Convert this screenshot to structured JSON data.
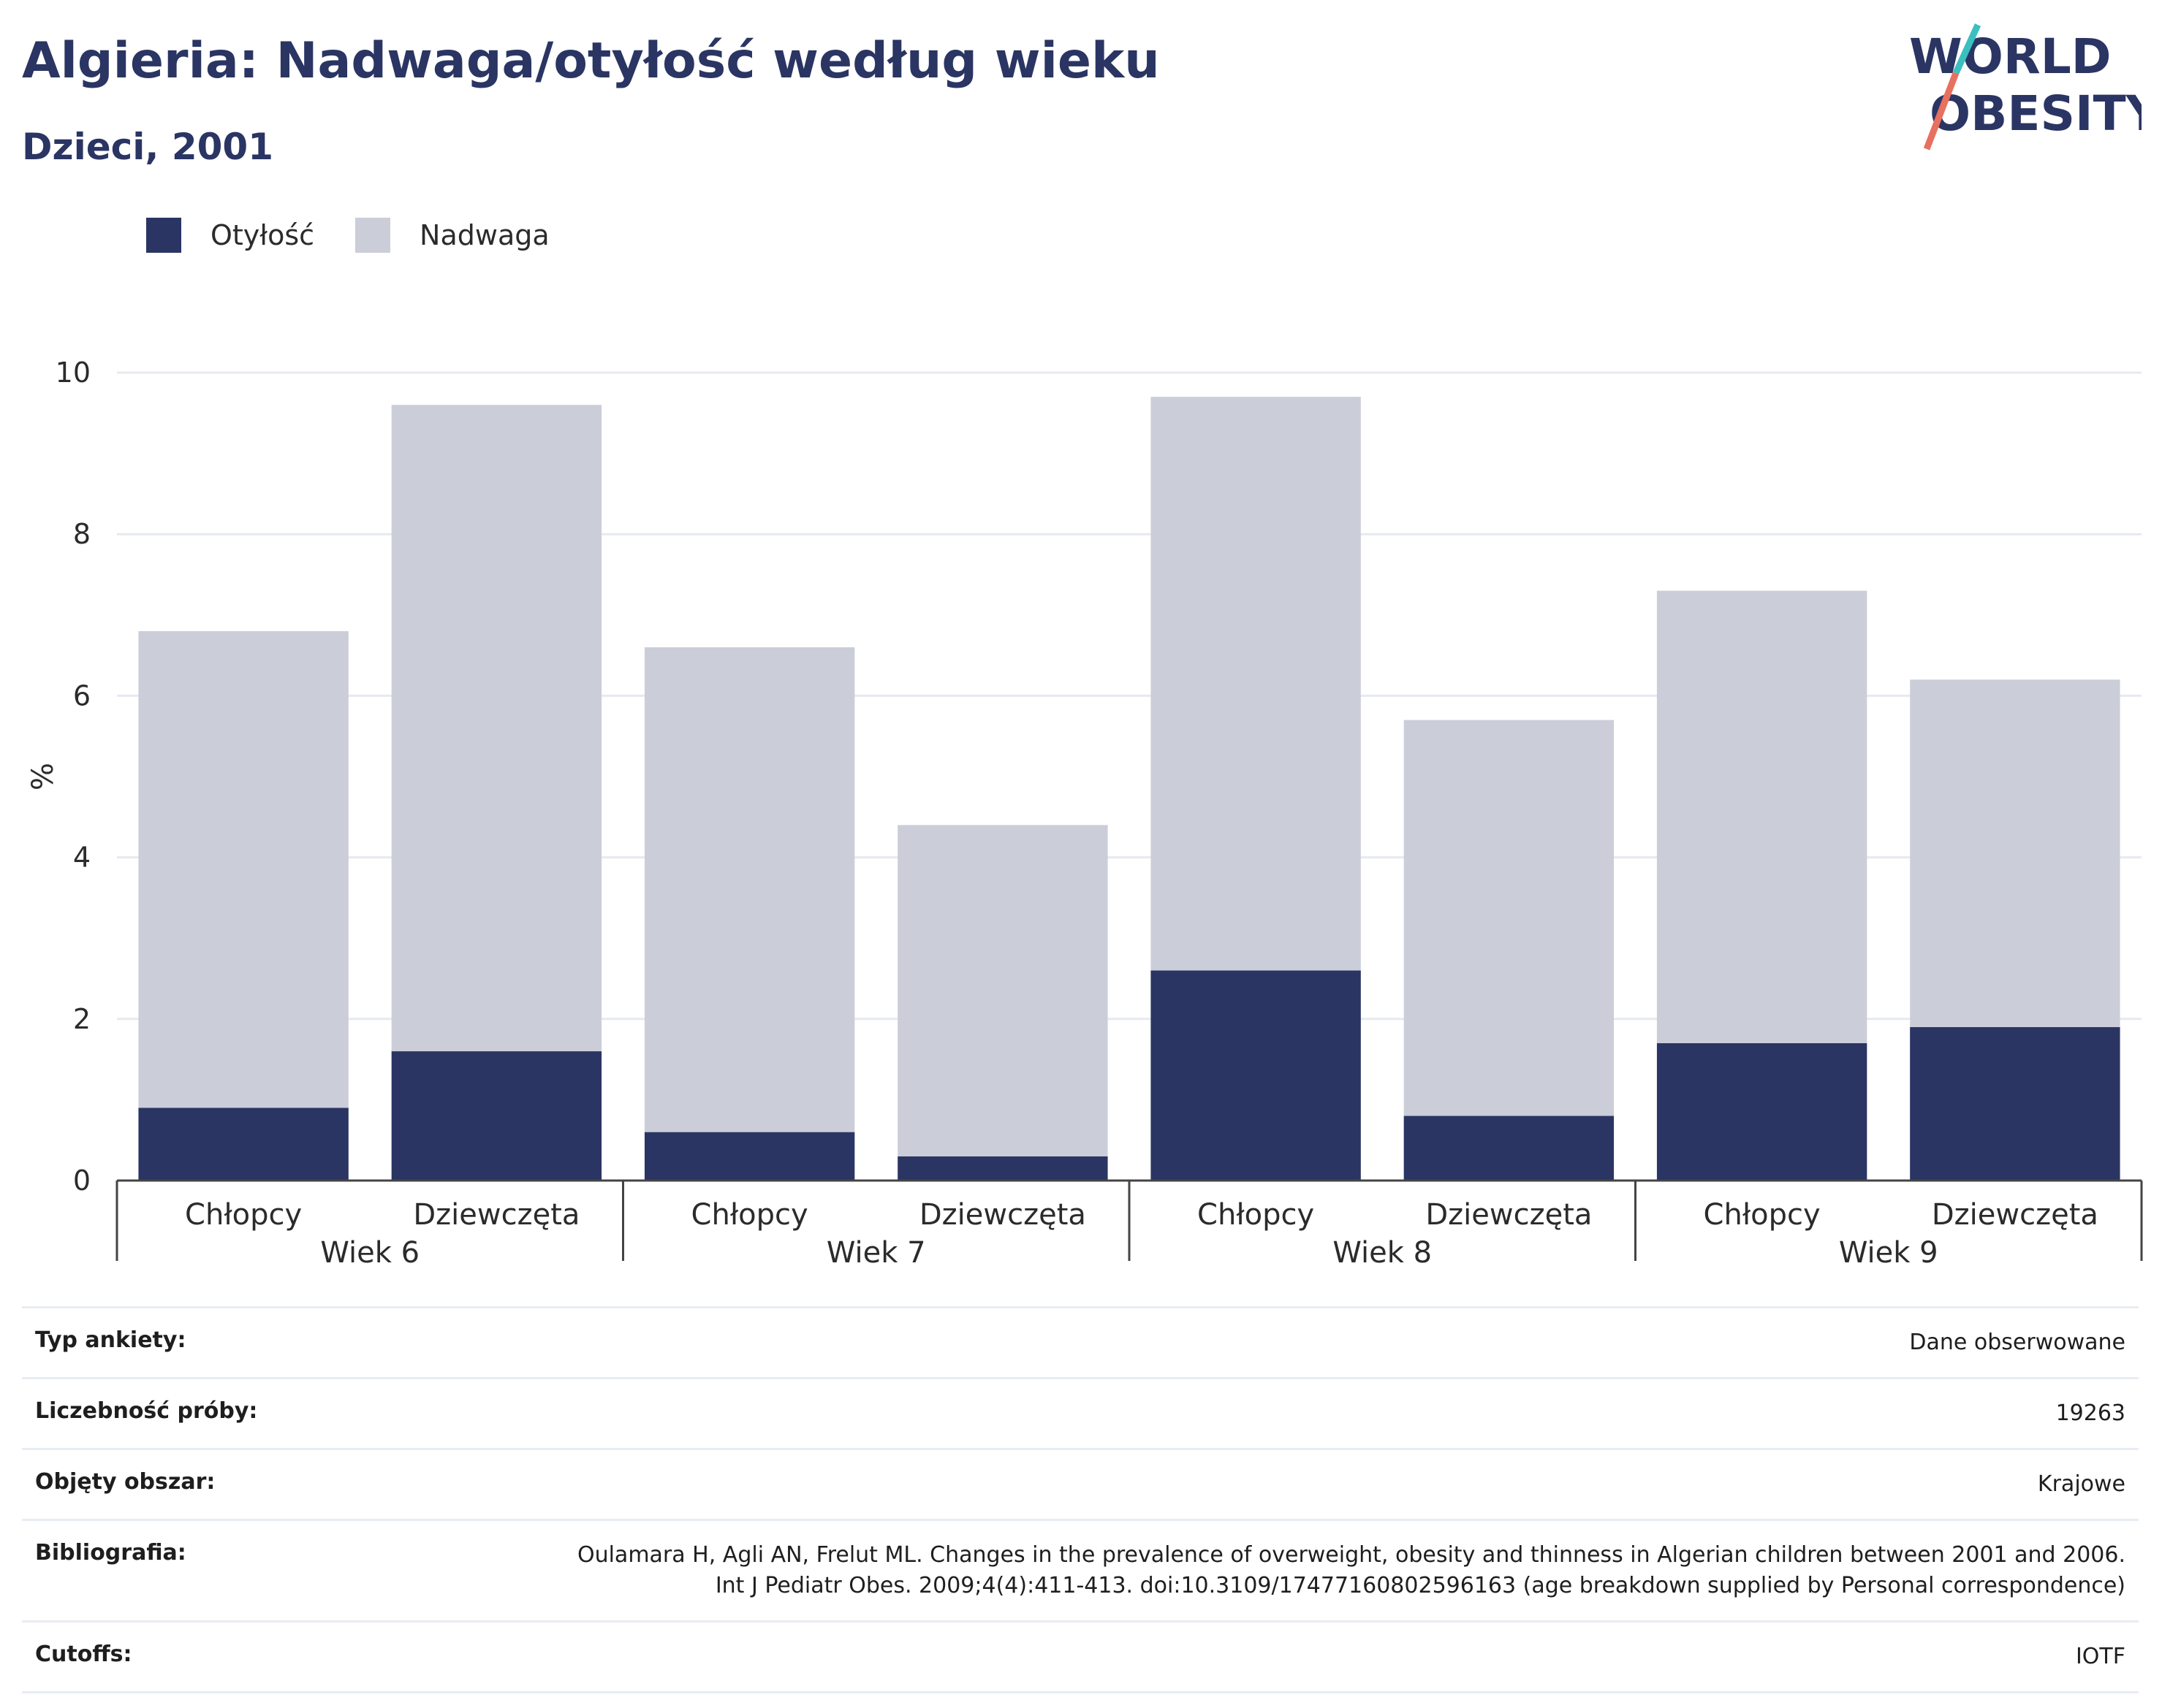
{
  "header": {
    "title": "Algieria: Nadwaga/otyłość według wieku",
    "subtitle": "Dzieci, 2001"
  },
  "logo": {
    "line1": "WORLD",
    "line2": "OBESITY",
    "accent_teal": "#3bbfbf",
    "accent_coral": "#e8705f"
  },
  "colors": {
    "obesity": "#2a3563",
    "overweight": "#cbcdd9",
    "grid": "#e6e9f0",
    "axis": "#444444"
  },
  "chart_data": {
    "type": "bar",
    "stacked": true,
    "ylabel": "%",
    "ylim": [
      0,
      10
    ],
    "yticks": [
      0,
      2,
      4,
      6,
      8,
      10
    ],
    "grid": true,
    "legend_position": "top-left",
    "groups": [
      "Wiek 6",
      "Wiek 7",
      "Wiek 8",
      "Wiek 9"
    ],
    "categories": [
      "Chłopcy",
      "Dziewczęta",
      "Chłopcy",
      "Dziewczęta",
      "Chłopcy",
      "Dziewczęta",
      "Chłopcy",
      "Dziewczęta"
    ],
    "series": [
      {
        "name": "Otyłość",
        "values": [
          0.9,
          1.6,
          0.6,
          0.3,
          2.6,
          0.8,
          1.7,
          1.9
        ]
      },
      {
        "name": "Nadwaga",
        "values": [
          5.9,
          8.0,
          6.0,
          4.1,
          7.1,
          4.9,
          5.6,
          4.3
        ]
      }
    ]
  },
  "meta": [
    {
      "key": "Typ ankiety:",
      "value": "Dane obserwowane"
    },
    {
      "key": "Liczebność próby:",
      "value": "19263"
    },
    {
      "key": "Objęty obszar:",
      "value": "Krajowe"
    },
    {
      "key": "Bibliografia:",
      "value": "Oulamara H, Agli AN, Frelut ML. Changes in the prevalence of overweight, obesity and thinness in Algerian children between 2001 and 2006. Int J Pediatr Obes. 2009;4(4):411-413. doi:10.3109/17477160802596163 (age breakdown supplied by Personal correspondence)"
    },
    {
      "key": "Cutoffs:",
      "value": "IOTF"
    }
  ]
}
